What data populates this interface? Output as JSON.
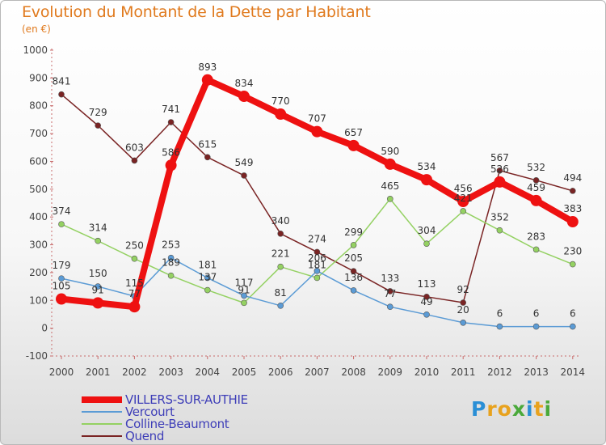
{
  "header": {
    "title": "Evolution du Montant de la Dette par Habitant",
    "unit": "(en €)"
  },
  "logo": {
    "letters": [
      "P",
      "r",
      "o",
      "x",
      "i",
      "t",
      "i"
    ],
    "colors": [
      "#2a8fd6",
      "#e8a21e",
      "#e8a21e",
      "#4aa93a",
      "#2a8fd6",
      "#e8a21e",
      "#4aa93a"
    ]
  },
  "chart_data": {
    "type": "line",
    "x": [
      "2000",
      "2001",
      "2002",
      "2003",
      "2004",
      "2005",
      "2006",
      "2007",
      "2008",
      "2009",
      "2010",
      "2011",
      "2012",
      "2013",
      "2014"
    ],
    "ylim": [
      -100,
      1000
    ],
    "yticks": [
      -100,
      0,
      100,
      200,
      300,
      400,
      500,
      600,
      700,
      800,
      900,
      1000
    ],
    "grid": false,
    "legend_position": "bottom-left",
    "series": [
      {
        "name": "VILLERS-SUR-AUTHIE",
        "color": "#ee1111",
        "values": [
          105,
          91,
          77,
          586,
          893,
          834,
          770,
          707,
          657,
          590,
          534,
          456,
          526,
          459,
          383
        ],
        "labels": [
          "105",
          "91",
          "77",
          "586",
          "893",
          "834",
          "770",
          "707",
          "657",
          "590",
          "534",
          "456",
          "526",
          "459",
          "383"
        ]
      },
      {
        "name": "Vercourt",
        "color": "#5b9bd5",
        "values": [
          179,
          150,
          115,
          253,
          181,
          117,
          81,
          206,
          136,
          77,
          49,
          20,
          6,
          6,
          6
        ],
        "labels": [
          "179",
          "150",
          "115",
          "253",
          "181",
          "117",
          "81",
          "206",
          "136",
          "77",
          "49",
          "20",
          "6",
          "6",
          "6"
        ]
      },
      {
        "name": "Colline-Beaumont",
        "color": "#94d162",
        "values": [
          374,
          314,
          250,
          189,
          137,
          91,
          221,
          181,
          299,
          465,
          304,
          421,
          352,
          283,
          230
        ],
        "labels": [
          "374",
          "314",
          "250",
          "189",
          "137",
          "91",
          "221",
          "181",
          "299",
          "465",
          "304",
          "421",
          "352",
          "283",
          "230"
        ]
      },
      {
        "name": "Quend",
        "color": "#7a2424",
        "values": [
          841,
          729,
          603,
          741,
          615,
          549,
          340,
          274,
          205,
          133,
          113,
          92,
          567,
          532,
          494
        ],
        "labels": [
          "841",
          "729",
          "603",
          "741",
          "615",
          "549",
          "340",
          "274",
          "205",
          "133",
          "113",
          "92",
          "567",
          "532",
          "494"
        ]
      }
    ]
  }
}
